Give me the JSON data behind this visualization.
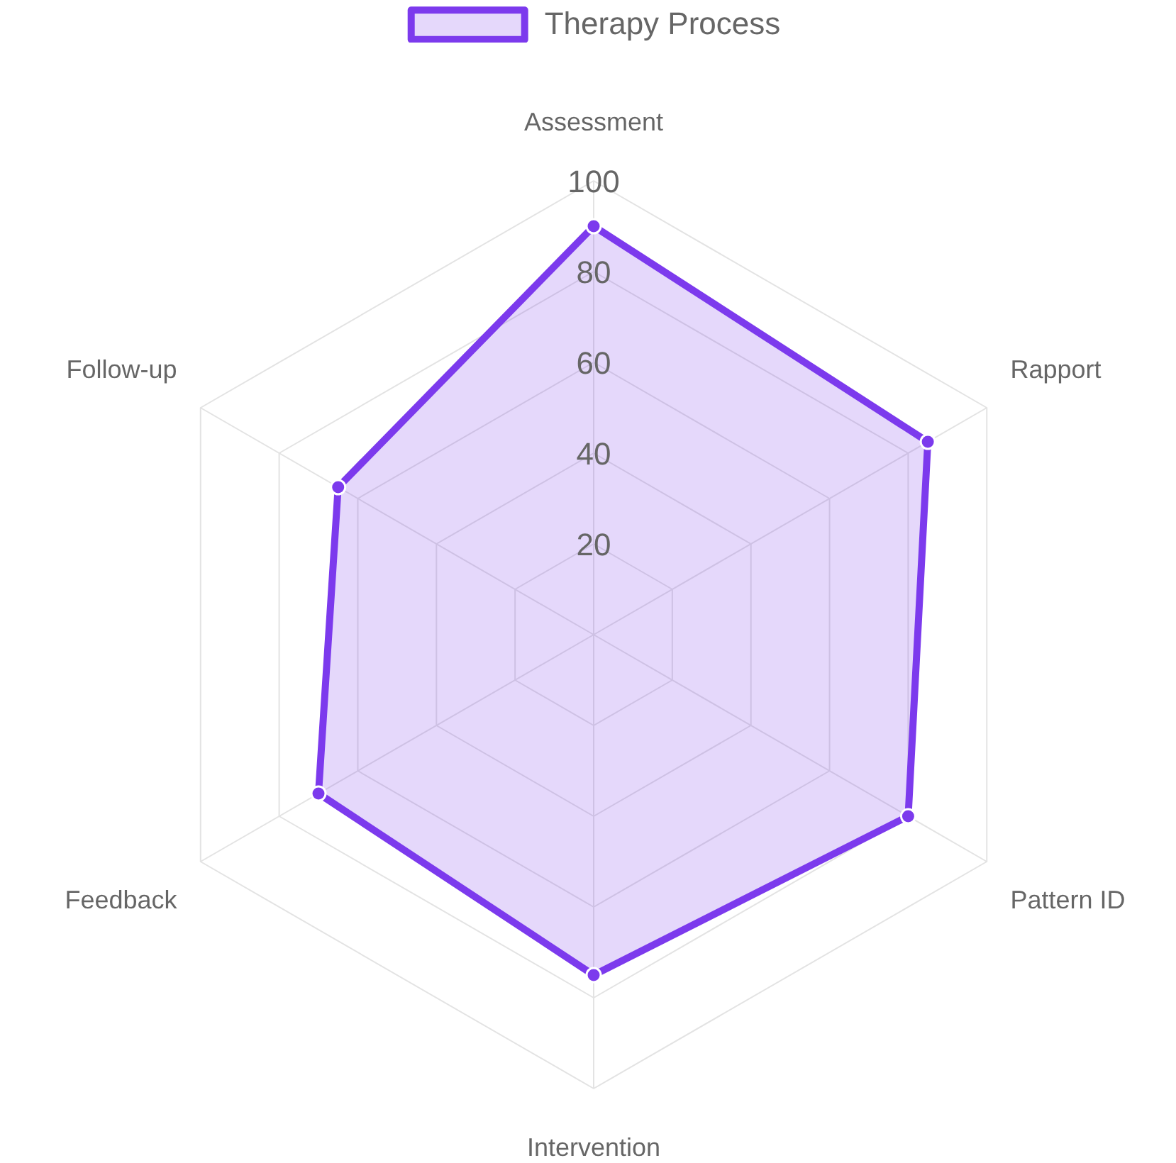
{
  "chart_data": {
    "type": "radar",
    "categories": [
      "Assessment",
      "Rapport",
      "Pattern ID",
      "Intervention",
      "Feedback",
      "Follow-up"
    ],
    "series": [
      {
        "name": "Therapy Process",
        "color": "#7c3aed",
        "values": [
          90,
          85,
          80,
          75,
          70,
          65
        ]
      }
    ],
    "ylim": [
      0,
      100
    ],
    "yticks": [
      20,
      40,
      60,
      80,
      100
    ],
    "grid": true,
    "legend": "top",
    "marker": "circle"
  }
}
